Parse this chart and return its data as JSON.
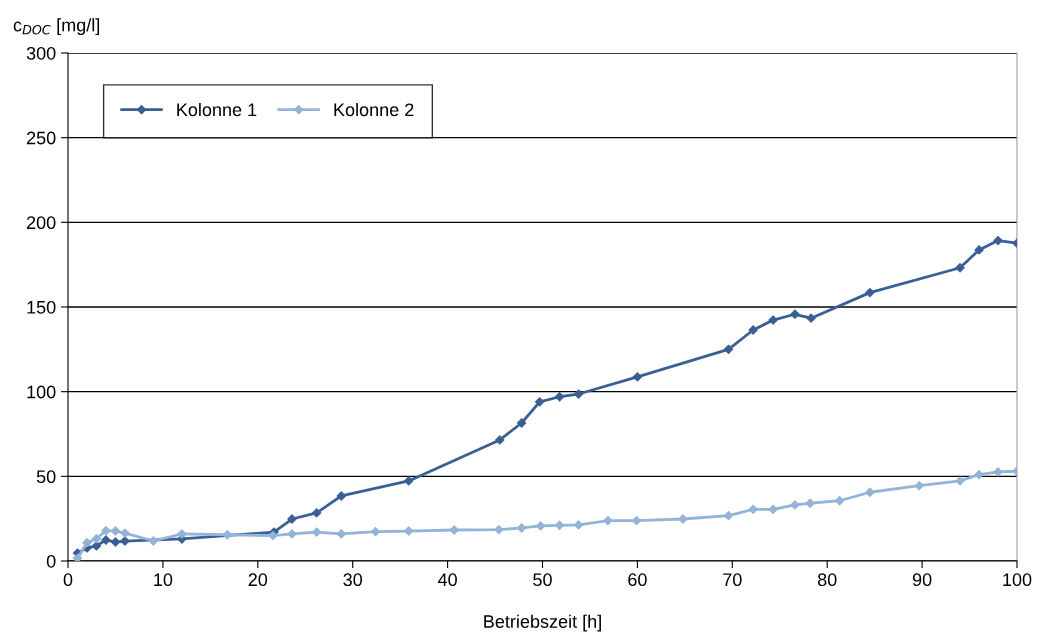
{
  "chart_data": {
    "type": "line",
    "xlabel": "Betriebszeit [h]",
    "ylabel": "c$_{DOC}$ [mg/l]",
    "xlim": [
      0,
      100
    ],
    "xticks": [
      0,
      10,
      20,
      30,
      40,
      50,
      60,
      70,
      80,
      90,
      100
    ],
    "ylim": [
      0,
      300
    ],
    "yticks": [
      0,
      50,
      100,
      150,
      200,
      250,
      300
    ],
    "grid": "y",
    "legend": "top left",
    "marker": "diamond",
    "line_style": "solid",
    "series": [
      {
        "name": "Kolonne 1",
        "color": "#3a5f95",
        "x": [
          1.0,
          2.0,
          3.0,
          4.0,
          5.0,
          6.0,
          12.0,
          21.7,
          23.6,
          26.2,
          28.8,
          35.9,
          45.5,
          47.8,
          49.7,
          51.8,
          53.8,
          60.0,
          69.6,
          72.2,
          74.3,
          76.6,
          78.3,
          84.5,
          94.0,
          96.0,
          98.0,
          100.0
        ],
        "values": [
          4.7,
          7.7,
          8.9,
          12.4,
          11.2,
          11.8,
          13.0,
          17.1,
          24.8,
          28.4,
          38.4,
          47.3,
          71.5,
          81.5,
          94.0,
          97.0,
          98.6,
          108.7,
          125.0,
          136.4,
          142.3,
          145.7,
          143.4,
          158.5,
          173.2,
          183.7,
          189.2,
          187.7
        ]
      },
      {
        "name": "Kolonne 2",
        "color": "#94b3d9",
        "x": [
          1.0,
          2.0,
          3.0,
          4.0,
          5.0,
          6.0,
          9.0,
          12.0,
          16.8,
          21.6,
          23.6,
          26.2,
          28.8,
          32.4,
          35.9,
          40.7,
          45.4,
          47.8,
          49.8,
          51.8,
          53.8,
          56.9,
          59.9,
          64.8,
          69.6,
          72.2,
          74.3,
          76.6,
          78.2,
          81.3,
          84.5,
          89.7,
          94.0,
          96.0,
          98.0,
          100.0
        ],
        "values": [
          1.6,
          10.8,
          13.2,
          17.9,
          17.7,
          16.5,
          11.8,
          16.0,
          15.5,
          15.0,
          16.0,
          17.1,
          16.0,
          17.3,
          17.7,
          18.3,
          18.5,
          19.5,
          20.7,
          21.1,
          21.3,
          23.8,
          23.8,
          24.8,
          26.8,
          30.5,
          30.5,
          33.1,
          34.1,
          35.6,
          40.6,
          44.5,
          47.3,
          51.0,
          52.6,
          53.0
        ]
      }
    ]
  }
}
